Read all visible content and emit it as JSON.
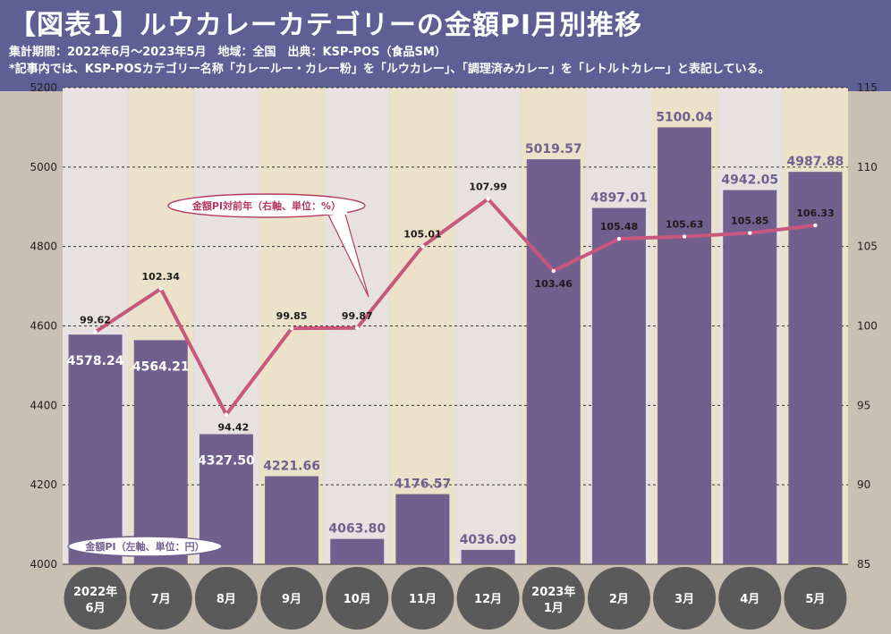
{
  "header": {
    "title": "【図表1】ルウカレーカテゴリーの金額PI月別推移",
    "subtitle1": "集計期間：2022年6月～2023年5月　地域：全国　出典：KSP-POS（食品SM）",
    "subtitle2": "*記事内では、KSP-POSカテゴリー名称「カレールー・カレー粉」を「ルウカレー」、「調理済みカレー」を「レトルトカレー」と表記している。"
  },
  "colors": {
    "header_bg": "#5f5f95",
    "bar": "#715f8e",
    "line": "#c8567d",
    "col_light": "#e7e2e0",
    "col_cream": "#ebe2c9",
    "outer_bg": "#c9c0b3",
    "month_circle": "#5a5a5a",
    "callout_stroke": "#b43a62"
  },
  "chart_data": {
    "type": "bar",
    "categories": [
      [
        "2022年",
        "6月"
      ],
      [
        "7月"
      ],
      [
        "8月"
      ],
      [
        "9月"
      ],
      [
        "10月"
      ],
      [
        "11月"
      ],
      [
        "12月"
      ],
      [
        "2023年",
        "1月"
      ],
      [
        "2月"
      ],
      [
        "3月"
      ],
      [
        "4月"
      ],
      [
        "5月"
      ]
    ],
    "series": [
      {
        "name": "金額PI（左軸、単位：円）",
        "type": "bar",
        "axis": "left",
        "values": [
          4578.24,
          4564.21,
          4327.5,
          4221.66,
          4063.8,
          4176.57,
          4036.09,
          5019.57,
          4897.01,
          5100.04,
          4942.05,
          4987.88
        ],
        "labels": [
          "4578.24",
          "4564.21",
          "4327.50",
          "4221.66",
          "4063.80",
          "4176.57",
          "4036.09",
          "5019.57",
          "4897.01",
          "5100.04",
          "4942.05",
          "4987.88"
        ]
      },
      {
        "name": "金額PI対前年（右軸、単位：%）",
        "type": "line",
        "axis": "right",
        "values": [
          99.62,
          102.34,
          94.42,
          99.85,
          99.87,
          105.01,
          107.99,
          103.46,
          105.48,
          105.63,
          105.85,
          106.33
        ],
        "labels": [
          "99.62",
          "102.34",
          "94.42",
          "99.85",
          "99.87",
          "105.01",
          "107.99",
          "103.46",
          "105.48",
          "105.63",
          "105.85",
          "106.33"
        ]
      }
    ],
    "left_axis": {
      "ylim": [
        4000,
        5200
      ],
      "ticks": [
        "4000",
        "4200",
        "4400",
        "4600",
        "4800",
        "5000",
        "5200"
      ]
    },
    "right_axis": {
      "ylim": [
        85,
        115
      ],
      "ticks": [
        "85",
        "90",
        "95",
        "100",
        "105",
        "110",
        "115"
      ]
    },
    "grid": "dashed horizontal"
  }
}
